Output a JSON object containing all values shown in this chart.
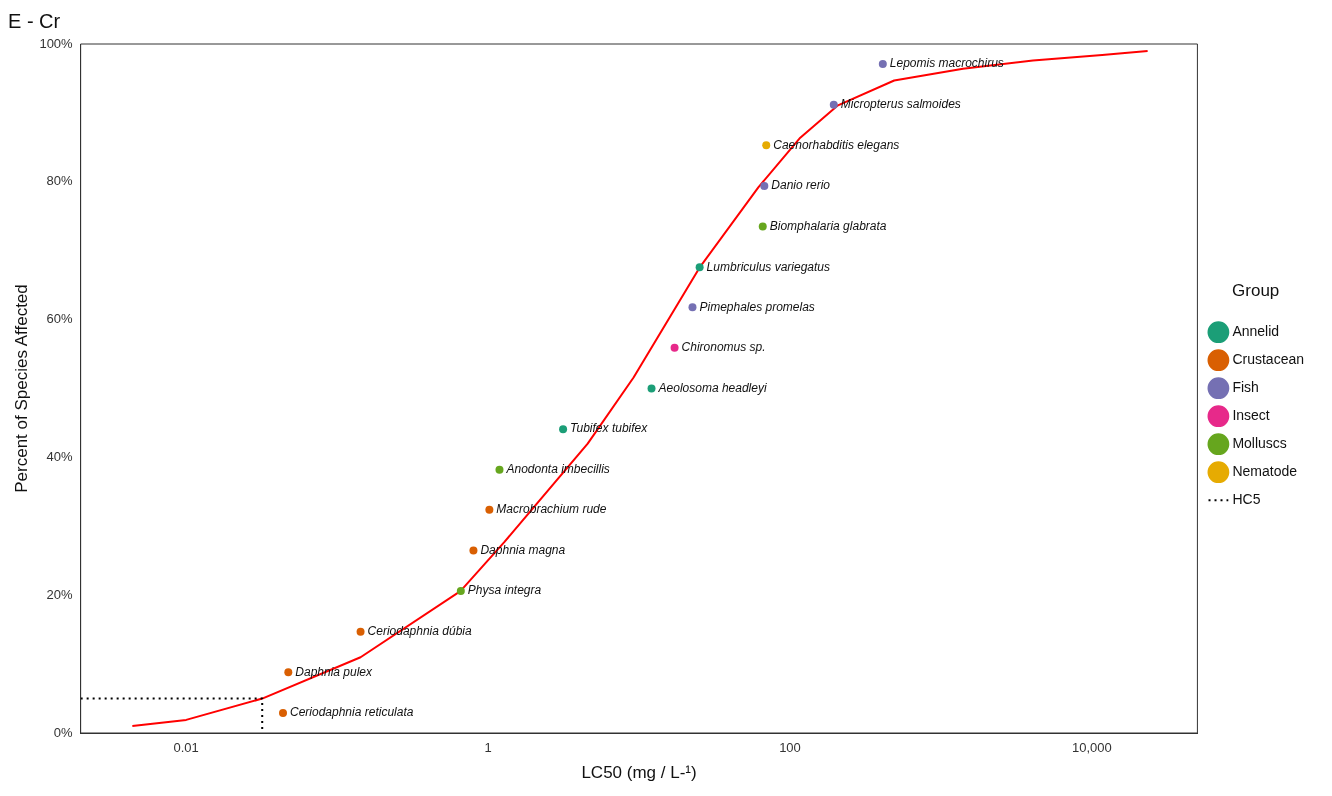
{
  "chart_data": {
    "type": "scatter",
    "title": "E - Cr",
    "xlabel": "LC50 (mg / L-¹)",
    "ylabel": "Percent of Species Affected",
    "legend_title": "Group",
    "log": "x",
    "grid": false,
    "legend": "right",
    "marker": "circle",
    "xlim": [
      0.002,
      50000
    ],
    "xticks": [
      0.01,
      1,
      100,
      {
        "value": 10000,
        "label": "10,000"
      }
    ],
    "ylim": [
      0,
      100
    ],
    "yticks": [
      {
        "value": 0,
        "label": "0%"
      },
      {
        "value": 20,
        "label": "20%"
      },
      {
        "value": 40,
        "label": "40%"
      },
      {
        "value": 60,
        "label": "60%"
      },
      {
        "value": 80,
        "label": "80%"
      },
      {
        "value": 100,
        "label": "100%"
      }
    ],
    "series": [
      {
        "type": "line",
        "color": "#ff0000",
        "marker": "none",
        "line_style": "solid",
        "x": [
          0.0044,
          0.01,
          0.0319,
          0.143,
          0.656,
          1.28,
          4.57,
          9.2,
          25.1,
          61.7,
          117,
          208,
          490,
          1400,
          4070,
          11700,
          23400
        ],
        "values": [
          1.0,
          1.9,
          5.0,
          11,
          20.6,
          27.7,
          42,
          51.6,
          67.5,
          79.2,
          86.4,
          91.1,
          94.7,
          96.4,
          97.6,
          98.4,
          99.0
        ]
      },
      {
        "name": "Annelid",
        "color": "#1b9e77",
        "x": [
          3.14,
          12.1,
          25.2
        ],
        "values": [
          44.1,
          50.0,
          67.6
        ]
      },
      {
        "name": "Crustacean",
        "color": "#d95f02",
        "x": [
          0.0438,
          0.0475,
          0.143,
          0.8,
          1.02
        ],
        "values": [
          2.9,
          8.8,
          14.7,
          26.5,
          32.4
        ]
      },
      {
        "name": "Fish",
        "color": "#7570b3",
        "x": [
          22.6,
          67.6,
          195,
          412
        ],
        "values": [
          61.8,
          79.4,
          91.2,
          97.1
        ]
      },
      {
        "name": "Insect",
        "color": "#e7298a",
        "x": [
          17.2
        ],
        "values": [
          55.9
        ]
      },
      {
        "name": "Molluscs",
        "color": "#66a61e",
        "x": [
          0.66,
          1.19,
          66
        ],
        "values": [
          20.6,
          38.2,
          73.5
        ]
      },
      {
        "name": "Nematode",
        "color": "#e6ab02",
        "x": [
          69.6
        ],
        "values": [
          85.3
        ]
      },
      {
        "name": "HC5",
        "type": "line",
        "color": "#000000",
        "marker": "none",
        "line_style": "dotted",
        "x": [
          0.002,
          0.0319,
          0.0319
        ],
        "values": [
          5,
          5,
          0
        ]
      }
    ],
    "annotations": [
      {
        "text": "Ceriodaphnia reticulata",
        "x": 0.0438,
        "y": 2.9
      },
      {
        "text": "Daphnia pulex",
        "x": 0.0475,
        "y": 8.8
      },
      {
        "text": "Ceriodaphnia dúbia",
        "x": 0.143,
        "y": 14.7
      },
      {
        "text": "Physa integra",
        "x": 0.66,
        "y": 20.6
      },
      {
        "text": "Daphnia magna",
        "x": 0.8,
        "y": 26.5
      },
      {
        "text": "Macrobrachium rude",
        "x": 1.02,
        "y": 32.4
      },
      {
        "text": "Anodonta imbecillis",
        "x": 1.19,
        "y": 38.2
      },
      {
        "text": "Tubifex tubifex",
        "x": 3.14,
        "y": 44.1
      },
      {
        "text": "Aeolosoma headleyi",
        "x": 12.1,
        "y": 50.0
      },
      {
        "text": "Chironomus sp.",
        "x": 17.2,
        "y": 55.9
      },
      {
        "text": "Pimephales promelas",
        "x": 22.6,
        "y": 61.8
      },
      {
        "text": "Lumbriculus variegatus",
        "x": 25.2,
        "y": 67.6
      },
      {
        "text": "Biomphalaria glabrata",
        "x": 66,
        "y": 73.5
      },
      {
        "text": "Danio rerio",
        "x": 67.6,
        "y": 79.4
      },
      {
        "text": "Caenorhabditis elegans",
        "x": 69.6,
        "y": 85.3
      },
      {
        "text": "Micropterus salmoides",
        "x": 195,
        "y": 91.2
      },
      {
        "text": "Lepomis macrochirus",
        "x": 412,
        "y": 97.1
      }
    ]
  }
}
